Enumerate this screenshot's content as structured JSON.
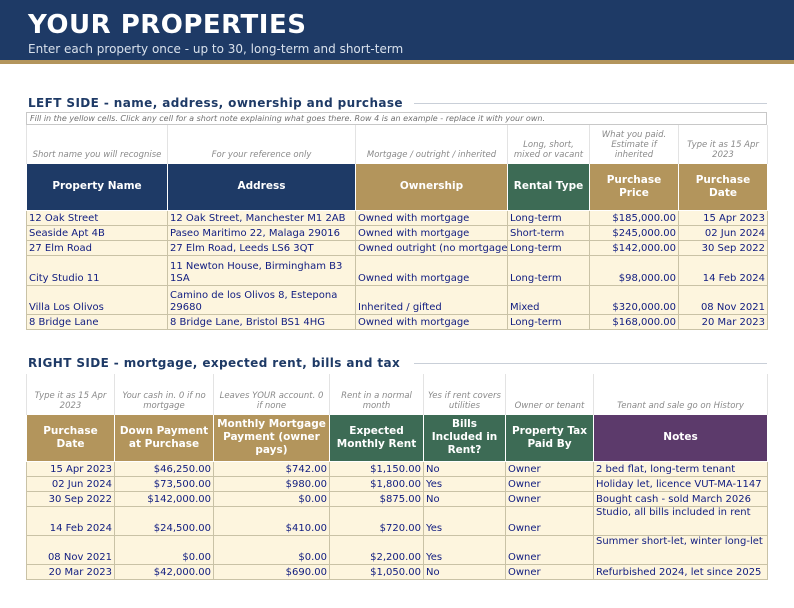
{
  "banner": {
    "title": "YOUR PROPERTIES",
    "subtitle": "Enter each property once  -  up to 30, long-term and short-term"
  },
  "left": {
    "heading": "LEFT SIDE   -   name, address, ownership and purchase",
    "instruction": "Fill in the yellow cells. Click any cell for a short note explaining what goes there. Row 4 is an example - replace it with your own.",
    "hints": [
      "Short name you will recognise",
      "For your reference only",
      "Mortgage / outright / inherited",
      "Long, short, mixed or vacant",
      "What you paid. Estimate if inherited",
      "Type it as 15 Apr 2023"
    ],
    "headers": [
      "Property Name",
      "Address",
      "Ownership",
      "Rental Type",
      "Purchase Price",
      "Purchase Date"
    ],
    "rows": [
      [
        "12 Oak Street",
        "12 Oak Street, Manchester M1 2AB",
        "Owned with mortgage",
        "Long-term",
        "$185,000.00",
        "15 Apr 2023"
      ],
      [
        "Seaside Apt 4B",
        "Paseo Maritimo 22, Malaga 29016",
        "Owned with mortgage",
        "Short-term",
        "$245,000.00",
        "02 Jun 2024"
      ],
      [
        "27 Elm Road",
        "27 Elm Road, Leeds LS6 3QT",
        "Owned outright (no mortgage)",
        "Long-term",
        "$142,000.00",
        "30 Sep 2022"
      ],
      [
        "City Studio 11",
        "11 Newton House, Birmingham B3 1SA",
        "Owned with mortgage",
        "Long-term",
        "$98,000.00",
        "14 Feb 2024"
      ],
      [
        "Villa Los Olivos",
        "Camino de los Olivos 8, Estepona 29680",
        "Inherited / gifted",
        "Mixed",
        "$320,000.00",
        "08 Nov 2021"
      ],
      [
        "8 Bridge Lane",
        "8 Bridge Lane, Bristol BS1 4HG",
        "Owned with mortgage",
        "Long-term",
        "$168,000.00",
        "20 Mar 2023"
      ]
    ]
  },
  "right": {
    "heading": "RIGHT SIDE   -   mortgage, expected rent, bills and tax",
    "hints": [
      "Type it as 15 Apr 2023",
      "Your cash in. 0 if no mortgage",
      "Leaves YOUR account. 0 if none",
      "Rent in a normal month",
      "Yes if rent covers utilities",
      "Owner or tenant",
      "Tenant and sale go on History"
    ],
    "headers": [
      "Purchase Date",
      "Down Payment at Purchase",
      "Monthly Mortgage Payment (owner pays)",
      "Expected Monthly Rent",
      "Bills Included in Rent?",
      "Property Tax Paid By",
      "Notes"
    ],
    "rows": [
      [
        "15 Apr 2023",
        "$46,250.00",
        "$742.00",
        "$1,150.00",
        "No",
        "Owner",
        "2 bed flat, long-term tenant"
      ],
      [
        "02 Jun 2024",
        "$73,500.00",
        "$980.00",
        "$1,800.00",
        "Yes",
        "Owner",
        "Holiday let, licence VUT-MA-1147"
      ],
      [
        "30 Sep 2022",
        "$142,000.00",
        "$0.00",
        "$875.00",
        "No",
        "Owner",
        "Bought cash - sold March 2026"
      ],
      [
        "14 Feb 2024",
        "$24,500.00",
        "$410.00",
        "$720.00",
        "Yes",
        "Owner",
        "Studio, all bills included in rent"
      ],
      [
        "08 Nov 2021",
        "$0.00",
        "$0.00",
        "$2,200.00",
        "Yes",
        "Owner",
        "Summer short-let, winter long-let"
      ],
      [
        "20 Mar 2023",
        "$42,000.00",
        "$690.00",
        "$1,050.00",
        "No",
        "Owner",
        "Refurbished 2024, let since 2025"
      ]
    ]
  },
  "colors": {
    "navy": "#1e3a66",
    "gold": "#b3955c",
    "green": "#3d6b55",
    "purple": "#5c3a6b",
    "input_fill": "#fdf5de",
    "input_text": "#101c80"
  }
}
